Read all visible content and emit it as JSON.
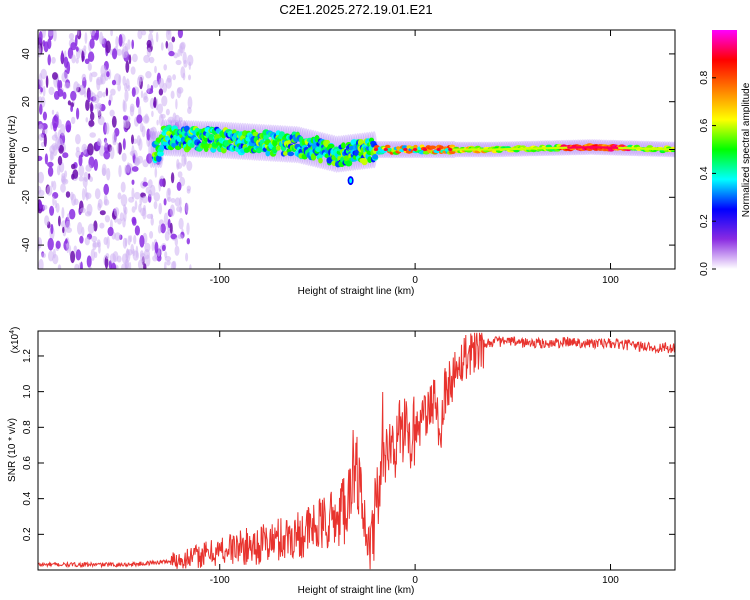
{
  "chart_data": [
    {
      "type": "heatmap",
      "title": "C2E1.2025.272.19.01.E21",
      "xlabel": "Height of straight line (km)",
      "ylabel": "Frequency (Hz)",
      "xlim": [
        -193,
        133
      ],
      "ylim": [
        -50,
        50
      ],
      "xticks": [
        -100,
        0,
        100
      ],
      "yticks": [
        -40,
        -20,
        0,
        20,
        40
      ],
      "colorbar": {
        "label": "Normalized spectral amplitude",
        "range": [
          0.0,
          1.0
        ],
        "ticks": [
          "0.0",
          "0.2",
          "0.4",
          "0.6",
          "0.8"
        ],
        "colormap": [
          "#ffffff",
          "#8a2be2",
          "#0000ff",
          "#00ffff",
          "#00ff00",
          "#ffff00",
          "#ff7f00",
          "#ff0000",
          "#ff00ff"
        ]
      },
      "features": {
        "noise_region_x": [
          -193,
          -115
        ],
        "signal_band_points": [
          [
            -130,
            5
          ],
          [
            -100,
            4
          ],
          [
            -60,
            2
          ],
          [
            -40,
            -2
          ],
          [
            -20,
            0
          ],
          [
            0,
            0
          ],
          [
            40,
            0
          ],
          [
            90,
            1
          ],
          [
            133,
            0
          ]
        ],
        "spot": [
          -33,
          -13
        ]
      }
    },
    {
      "type": "line",
      "xlabel": "Height of straight line (km)",
      "ylabel": "SNR (10 * v/v)",
      "yscale_label": "(x10^4)",
      "yscale_base": "(x10",
      "yscale_exp": "4",
      "yscale_close": ")",
      "xlim": [
        -193,
        133
      ],
      "ylim": [
        0,
        1.34
      ],
      "xticks": [
        -100,
        0,
        100
      ],
      "yticks": [
        0.2,
        0.4,
        0.6,
        0.8,
        1.0,
        1.2
      ],
      "series_color": "#e8332e",
      "series": [
        {
          "name": "SNR",
          "x": [
            -193,
            -150,
            -140,
            -125,
            -110,
            -95,
            -80,
            -70,
            -60,
            -50,
            -40,
            -35,
            -32,
            -30,
            -28,
            -25,
            -22,
            -20,
            -15,
            -10,
            -5,
            0,
            5,
            10,
            13,
            15,
            20,
            25,
            30,
            35,
            40,
            50,
            60,
            70,
            80,
            90,
            100,
            110,
            120,
            133
          ],
          "y": [
            0.03,
            0.03,
            0.035,
            0.05,
            0.08,
            0.12,
            0.14,
            0.17,
            0.2,
            0.24,
            0.3,
            0.38,
            0.55,
            0.6,
            0.38,
            0.1,
            0.15,
            0.4,
            0.62,
            0.72,
            0.8,
            0.78,
            0.85,
            0.95,
            0.75,
            1.0,
            1.1,
            1.2,
            1.24,
            1.27,
            1.28,
            1.28,
            1.27,
            1.27,
            1.28,
            1.27,
            1.27,
            1.26,
            1.25,
            1.24
          ]
        }
      ]
    }
  ]
}
